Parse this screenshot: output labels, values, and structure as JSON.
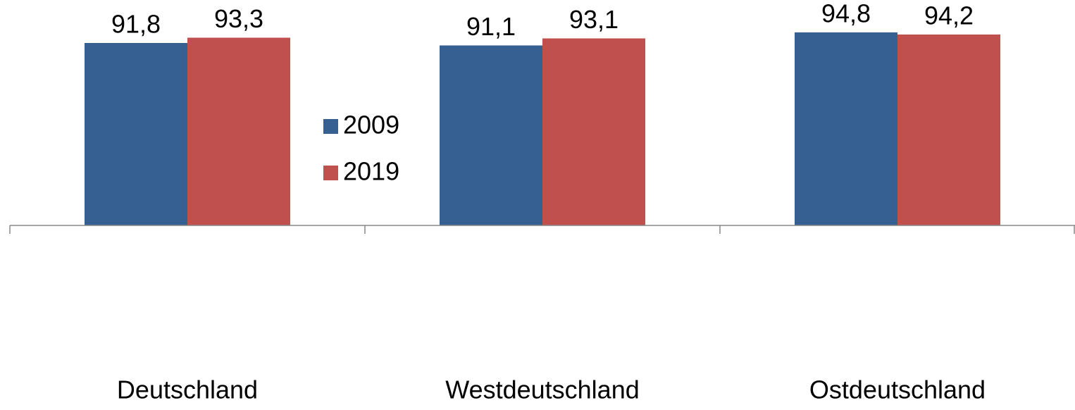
{
  "chart_data": {
    "type": "bar",
    "categories": [
      "Deutschland",
      "Westdeutschland",
      "Ostdeutschland"
    ],
    "series": [
      {
        "name": "2009",
        "color": "#376092",
        "values": [
          91.8,
          91.1,
          94.8
        ],
        "value_labels": [
          "91,8",
          "91,1",
          "94,8"
        ]
      },
      {
        "name": "2019",
        "color": "#c0504d",
        "values": [
          93.3,
          93.1,
          94.2
        ],
        "value_labels": [
          "93,3",
          "93,1",
          "94,2"
        ]
      }
    ],
    "ylim": [
      40,
      100
    ],
    "legend": "center"
  }
}
